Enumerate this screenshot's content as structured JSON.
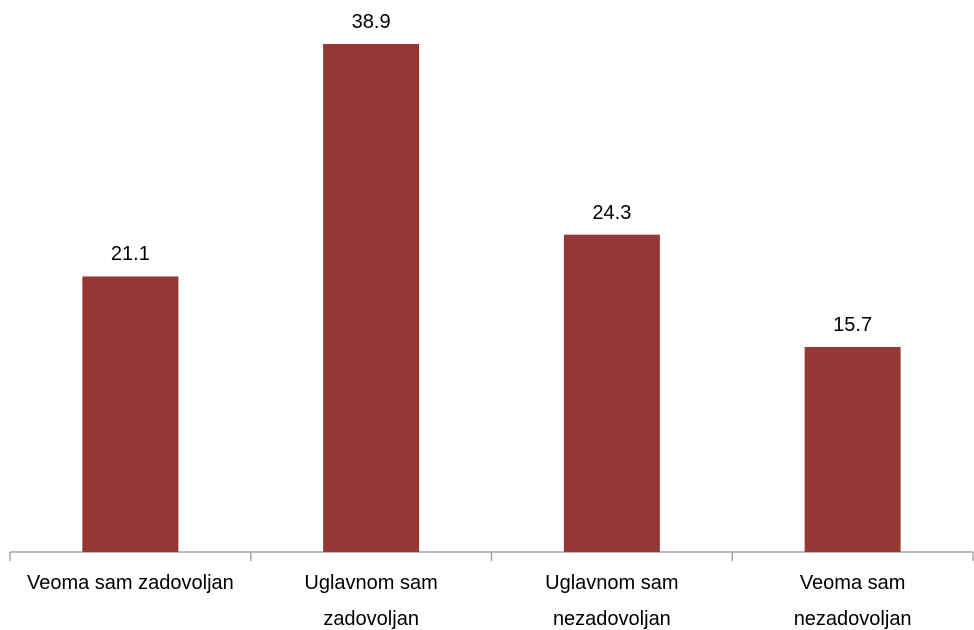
{
  "chart_data": {
    "type": "bar",
    "categories": [
      "Veoma sam zadovoljan",
      "Uglavnom sam\nzadovoljan",
      "Uglavnom sam\nnezadovoljan",
      "Veoma sam\nnezadovoljan"
    ],
    "values": [
      21.1,
      38.9,
      24.3,
      15.7
    ],
    "color": "#953735"
  }
}
